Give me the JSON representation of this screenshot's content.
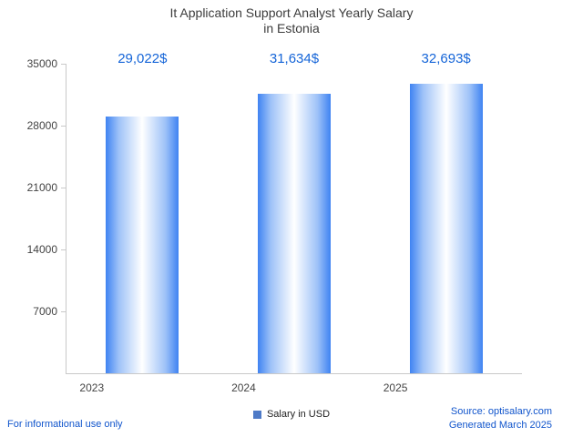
{
  "title": {
    "line1": "It Application Support Analyst Yearly Salary",
    "line2": "in Estonia"
  },
  "chart_data": {
    "type": "bar",
    "title": "It Application Support Analyst Yearly Salary in Estonia",
    "categories": [
      "2023",
      "2024",
      "2025"
    ],
    "values": [
      29022,
      31634,
      32693
    ],
    "value_labels": [
      "29,022$",
      "31,634$",
      "32,693$"
    ],
    "series_name": "Salary in USD",
    "xlabel": "",
    "ylabel": "",
    "ylim": [
      0,
      35000
    ],
    "yticks": [
      "7000",
      "14000",
      "21000",
      "28000",
      "35000"
    ],
    "grid": false,
    "legend_position": "bottom"
  },
  "colors": {
    "bar_edge": "#3f83f2",
    "bar_center": "#ffffff",
    "value_label": "#1565d8",
    "legend_swatch": "#4e7ac7",
    "footer_link": "#1155cc",
    "axis": "#c9c9c9",
    "title_text": "#3c3c3c"
  },
  "legend": {
    "label": "Salary in USD"
  },
  "footer": {
    "left": "For informational use only",
    "source": "Source: optisalary.com",
    "generated": "Generated March 2025"
  }
}
